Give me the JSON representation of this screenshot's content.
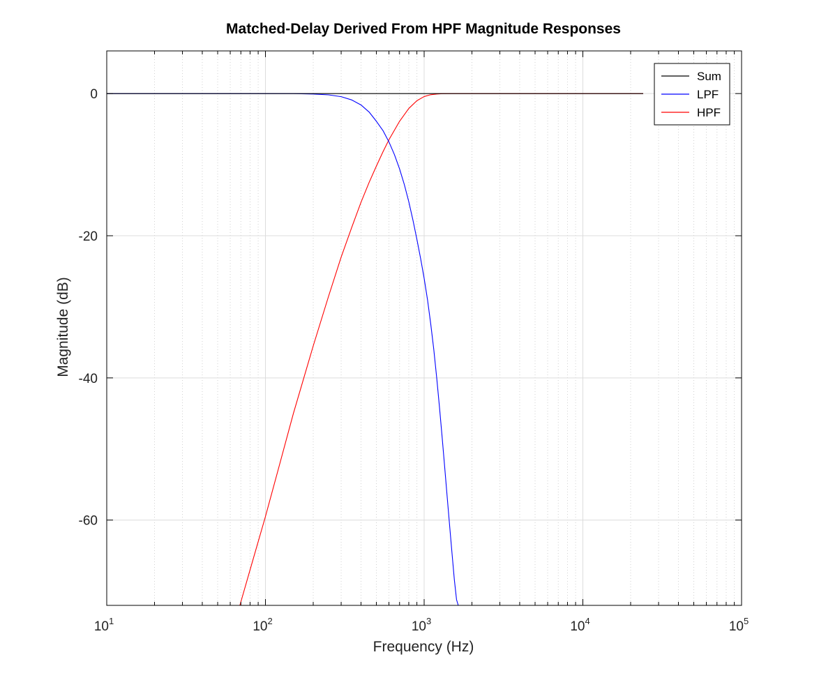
{
  "chart_data": {
    "type": "line",
    "title": "Matched-Delay Derived From HPF Magnitude Responses",
    "xlabel": "Frequency (Hz)",
    "ylabel": "Magnitude (dB)",
    "xscale": "log",
    "xlim": [
      10,
      100000
    ],
    "ylim": [
      -72,
      6
    ],
    "xticks": [
      10,
      100,
      1000,
      10000,
      100000
    ],
    "xtick_labels": [
      {
        "base": "10",
        "exp": "1"
      },
      {
        "base": "10",
        "exp": "2"
      },
      {
        "base": "10",
        "exp": "3"
      },
      {
        "base": "10",
        "exp": "4"
      },
      {
        "base": "10",
        "exp": "5"
      }
    ],
    "yticks": [
      0,
      -20,
      -40,
      -60
    ],
    "ytick_labels": [
      "0",
      "-20",
      "-40",
      "-60"
    ],
    "grid": true,
    "legend_position": "top-right",
    "series": [
      {
        "name": "Sum",
        "color": "#000000",
        "x": [
          10,
          100,
          1000,
          10000,
          24000
        ],
        "y": [
          0,
          0,
          0,
          0,
          0
        ]
      },
      {
        "name": "LPF",
        "color": "#0000ff",
        "x": [
          10,
          100,
          150,
          200,
          250,
          300,
          350,
          400,
          450,
          500,
          550,
          600,
          650,
          700,
          750,
          800,
          850,
          900,
          950,
          1000,
          1050,
          1100,
          1150,
          1200,
          1250,
          1300,
          1350,
          1400,
          1450,
          1500,
          1550,
          1600,
          1640
        ],
        "y": [
          0,
          0,
          -0.01,
          -0.06,
          -0.18,
          -0.44,
          -0.9,
          -1.6,
          -2.6,
          -3.9,
          -5.2,
          -6.8,
          -8.6,
          -10.6,
          -12.8,
          -15.2,
          -17.8,
          -20.5,
          -23.2,
          -26.0,
          -29.0,
          -32.4,
          -36.0,
          -40.0,
          -44.2,
          -48.5,
          -52.8,
          -57.0,
          -61.0,
          -64.8,
          -68.4,
          -71.2,
          -72
        ]
      },
      {
        "name": "HPF",
        "color": "#ff0000",
        "x": [
          69,
          80,
          100,
          120,
          150,
          200,
          250,
          300,
          350,
          400,
          450,
          500,
          550,
          600,
          700,
          800,
          900,
          1000,
          1100,
          1200,
          1300,
          1500,
          2000,
          5000,
          24000
        ],
        "y": [
          -72,
          -67,
          -59.5,
          -53.0,
          -45.0,
          -35.5,
          -28.5,
          -23.0,
          -18.8,
          -15.3,
          -12.5,
          -10.2,
          -8.2,
          -6.5,
          -3.9,
          -2.1,
          -1.0,
          -0.42,
          -0.16,
          -0.06,
          -0.02,
          0,
          0,
          0,
          0
        ]
      }
    ]
  }
}
